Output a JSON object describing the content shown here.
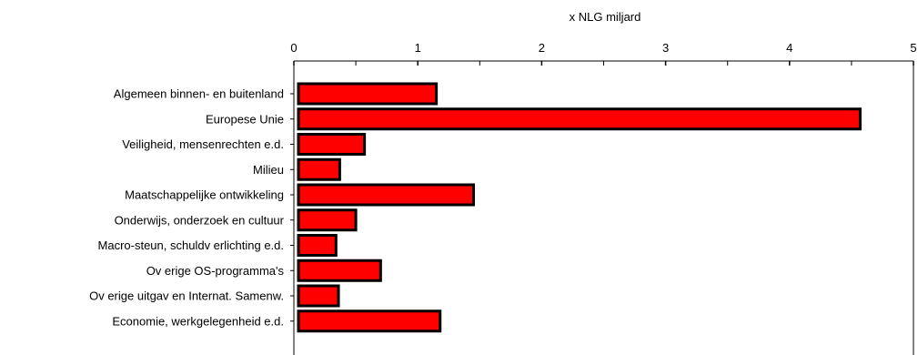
{
  "chart_data": {
    "type": "bar",
    "orientation": "horizontal",
    "title": "",
    "xlabel": "x NLG miljard",
    "ylabel": "",
    "xlim": [
      0,
      5
    ],
    "x_ticks": [
      "0",
      "1",
      "2",
      "3",
      "4",
      "5"
    ],
    "x_axis_position": "top",
    "grid": false,
    "legend": "none",
    "categories": [
      "Algemeen binnen- en buitenland",
      "Europese Unie",
      "Veiligheid, mensenrechten e.d.",
      "Milieu",
      "Maatschappelijke ontwikkeling",
      "Onderwijs, onderzoek en cultuur",
      "Macro-steun, schuldv erlichting e.d.",
      "Ov erige OS-programma's",
      "Ov erige uitgav en Internat. Samenw.",
      "Economie, werkgelegenheid e.d."
    ],
    "values": [
      1.15,
      4.57,
      0.57,
      0.37,
      1.45,
      0.5,
      0.34,
      0.7,
      0.36,
      1.18
    ],
    "bar_color": "#ff0000",
    "bar_stroke": "#000000"
  }
}
